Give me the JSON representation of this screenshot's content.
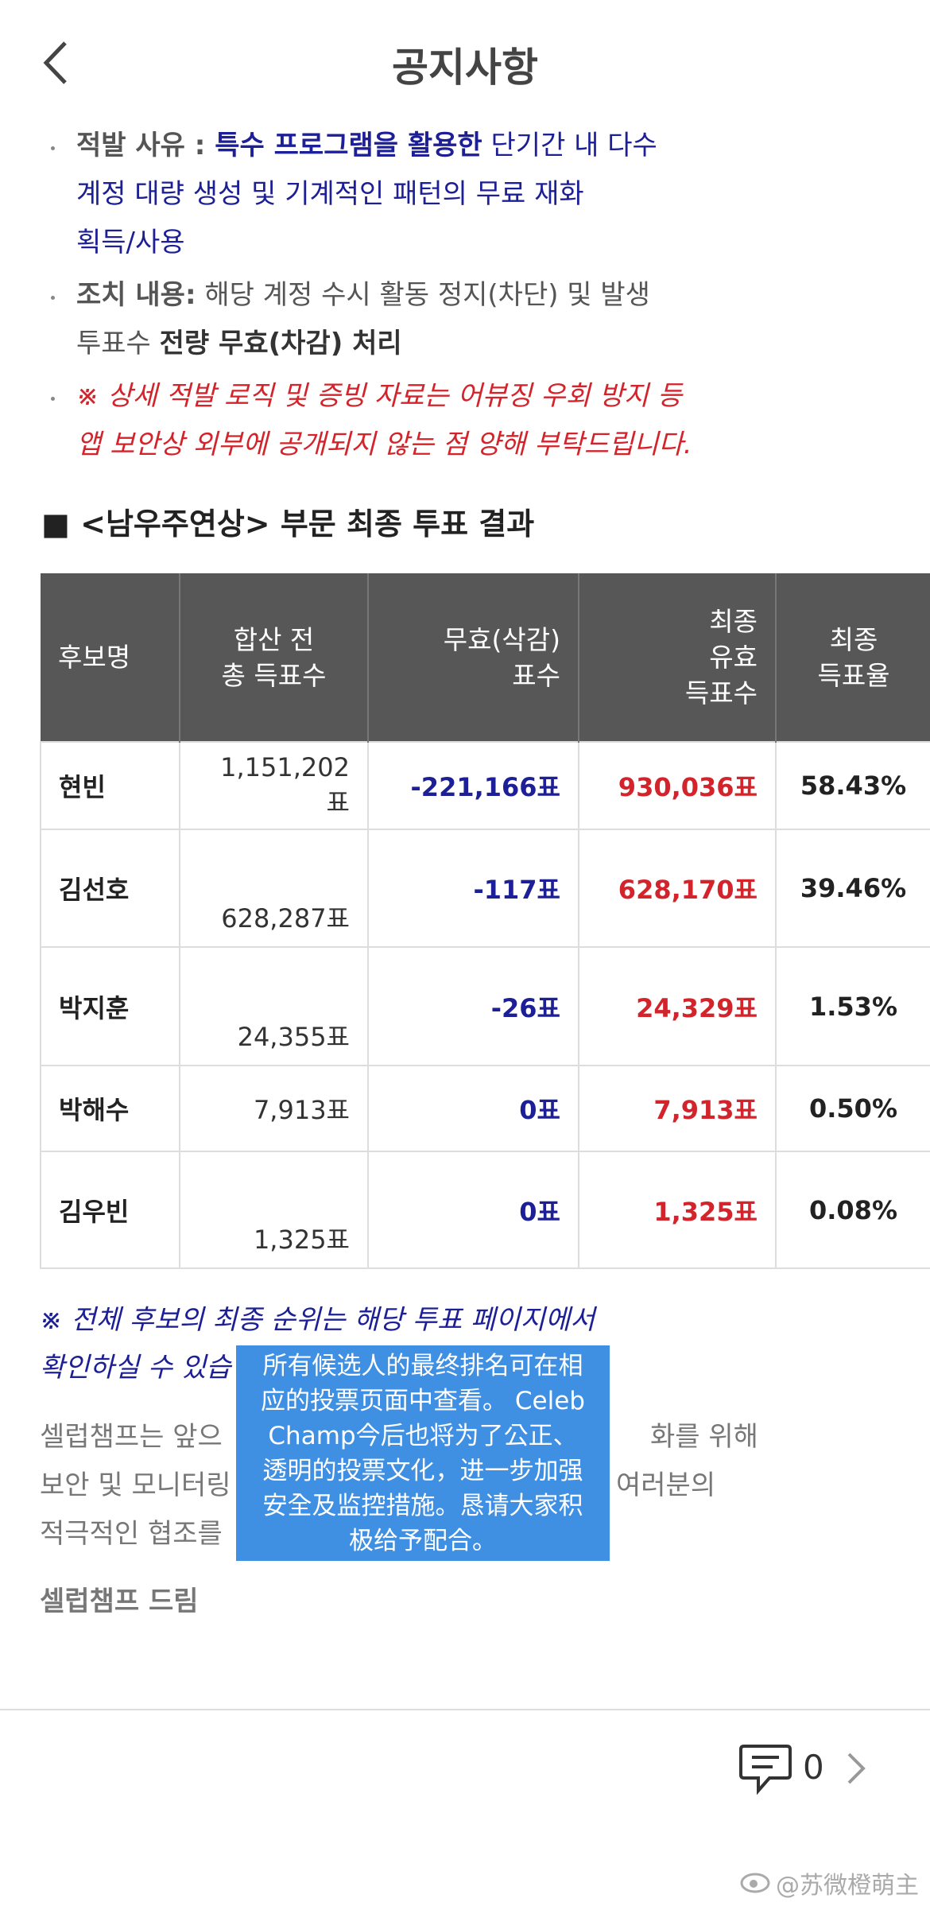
{
  "header": {
    "title": "공지사항"
  },
  "bullets": [
    {
      "lines": [
        [
          "적발 사유 : ",
          "특수 프로그램을 활용한",
          " 단기간 내 다수"
        ],
        [
          "계정 대량 생성 및 기계적인 패턴의 무료 재화"
        ],
        [
          "획득/사용"
        ]
      ]
    },
    {
      "lines": [
        [
          "조치 내용:",
          " 해당 계정 수시 활동 정지(차단) 및 발생"
        ],
        [
          "투표수 ",
          "전량 무효(차감) 처리"
        ]
      ]
    },
    {
      "lines": [
        [
          "※ 상세 적발 로직 및 증빙 자료는 어뷰징 우회 방지 등"
        ],
        [
          "앱 보안상 외부에 공개되지 않는 점 양해 부탁드립니다."
        ]
      ]
    }
  ],
  "section_title": "■ <남우주연상> 부문 최종 투표 결과",
  "table": {
    "headers": [
      [
        "후보명"
      ],
      [
        "합산 전",
        "총 득표수"
      ],
      [
        "무효(삭감)",
        "표수"
      ],
      [
        "최종",
        "유효",
        "득표수"
      ],
      [
        "최종",
        "득표율"
      ]
    ],
    "rows": [
      [
        "현빈",
        "1,151,202표",
        "-221,166표",
        "930,036표",
        "58.43%"
      ],
      [
        "김선호",
        "628,287표",
        "-117표",
        "628,170표",
        "39.46%"
      ],
      [
        "박지훈",
        "24,355표",
        "-26표",
        "24,329표",
        "1.53%"
      ],
      [
        "박해수",
        "7,913표",
        "0표",
        "7,913표",
        "0.50%"
      ],
      [
        "김우빈",
        "1,325표",
        "0표",
        "1,325표",
        "0.08%"
      ]
    ]
  },
  "notes": {
    "ranking": [
      "※ 전체 후보의 최종 순위는 해당 투표 페이지에서",
      "확인하실 수 있습"
    ],
    "closing": [
      [
        "셀럽챔프는 앞으",
        "화를 위해"
      ],
      [
        "보안 및 모니터링",
        "여러분의"
      ],
      [
        "적극적인 협조를"
      ]
    ],
    "signature": "셀럽챔프 드림"
  },
  "overlay": {
    "lines": [
      "所有候选人的最终排名可在相",
      "应的投票页面中查看。 Celeb",
      "Champ今后也将为了公正、",
      "透明的投票文化，进一步加强",
      "安全及监控措施。恳请大家积",
      "极给予配合。"
    ]
  },
  "footer": {
    "comment_count": 0
  },
  "watermark": "@苏微橙萌主"
}
